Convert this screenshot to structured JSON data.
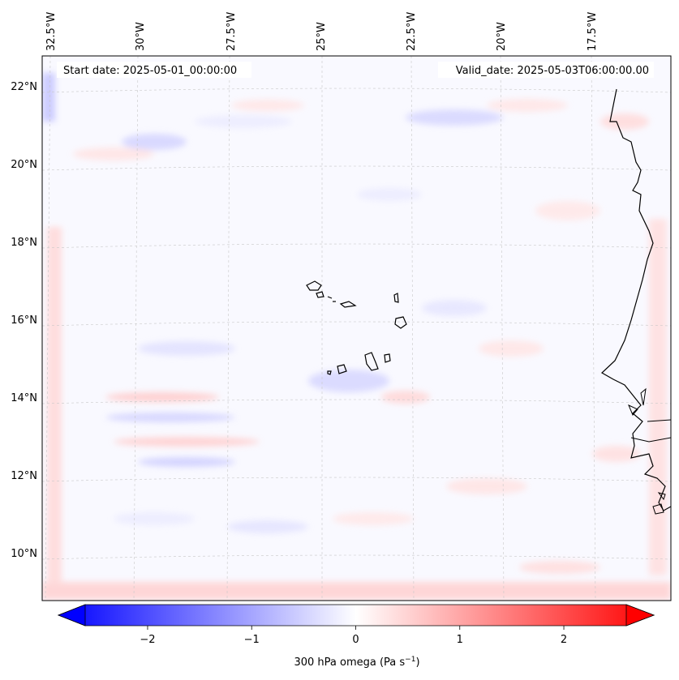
{
  "map": {
    "start_label": "Start date: 2025-05-01_00:00:00",
    "valid_label": "Valid_date: 2025-05-03T06:00:00.00",
    "lon_labels": [
      "32.5°W",
      "30°W",
      "27.5°W",
      "25°W",
      "22.5°W",
      "20°W",
      "17.5°W"
    ],
    "lat_labels": [
      "22°N",
      "20°N",
      "18°N",
      "16°N",
      "14°N",
      "12°N",
      "10°N"
    ],
    "variable_label": "300 hPa omega (Pa s",
    "variable_unit_exp": "−1",
    "variable_label_end": ")"
  },
  "colorbar": {
    "min": -2.6,
    "max": 2.6,
    "tick_values": [
      -2,
      -1,
      0,
      1,
      2
    ],
    "tick_labels": [
      "−2",
      "−1",
      "0",
      "1",
      "2"
    ],
    "color_low": "#0000ff",
    "color_mid": "#ffffff",
    "color_high": "#ff0000"
  }
}
